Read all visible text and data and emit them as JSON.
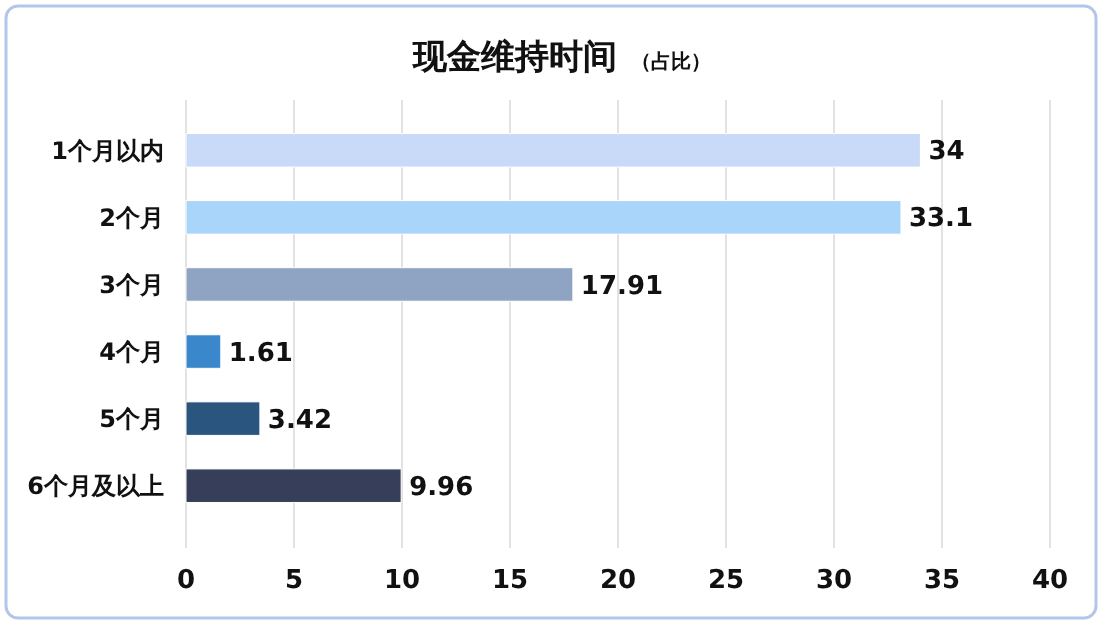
{
  "chart_data": {
    "type": "bar",
    "orientation": "horizontal",
    "title": "现金维持时间",
    "subtitle": "（占比）",
    "categories": [
      "1个月以内",
      "2个月",
      "3个月",
      "4个月",
      "5个月",
      "6个月及以上"
    ],
    "values": [
      34,
      33.1,
      17.91,
      1.61,
      3.42,
      9.96
    ],
    "colors": [
      "#c9daf8",
      "#a9d5fa",
      "#8ea4c2",
      "#3a87cc",
      "#2a557f",
      "#363e5a"
    ],
    "xlim": [
      0,
      40
    ],
    "xticks": [
      0,
      5,
      10,
      15,
      20,
      25,
      30,
      35,
      40
    ],
    "grid": "x",
    "data_labels": true
  }
}
